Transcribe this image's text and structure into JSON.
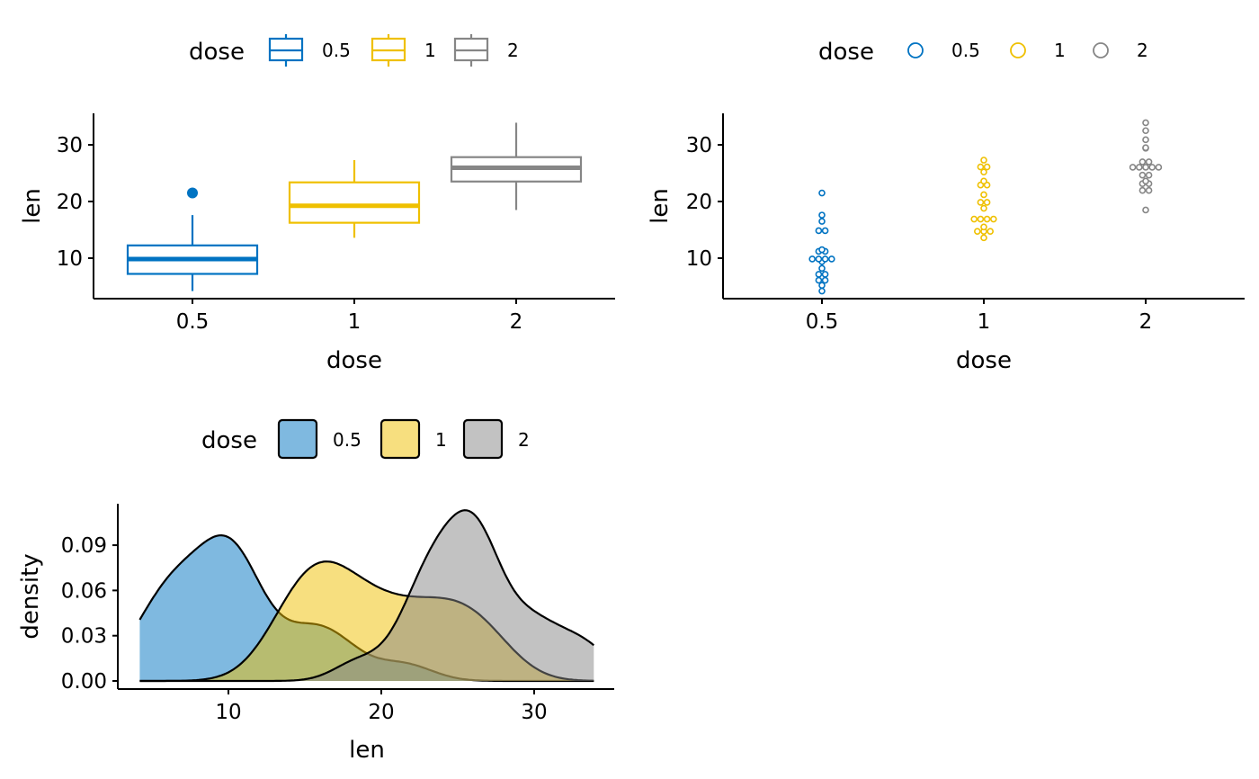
{
  "colors": {
    "0.5": "#0073C2",
    "1": "#EFC000",
    "2": "#868686"
  },
  "chart_data": [
    {
      "type": "box",
      "xlabel": "dose",
      "ylabel": "len",
      "categories": [
        "0.5",
        "1",
        "2"
      ],
      "yticks": [
        10,
        20,
        30
      ],
      "ylim": [
        2.7,
        35.4
      ],
      "legend": {
        "title": "dose",
        "labels": [
          "0.5",
          "1",
          "2"
        ],
        "placement": "top"
      },
      "boxes": [
        {
          "min": 4.2,
          "q1": 7.225,
          "median": 9.85,
          "q3": 12.25,
          "max": 17.6,
          "outliers": [
            21.5
          ]
        },
        {
          "min": 13.6,
          "q1": 16.25,
          "median": 19.25,
          "q3": 23.375,
          "max": 27.3,
          "outliers": []
        },
        {
          "min": 18.5,
          "q1": 23.525,
          "median": 25.95,
          "q3": 27.825,
          "max": 33.9,
          "outliers": []
        }
      ]
    },
    {
      "type": "scatter",
      "subtype": "dotplot",
      "xlabel": "dose",
      "ylabel": "len",
      "categories": [
        "0.5",
        "1",
        "2"
      ],
      "yticks": [
        10,
        20,
        30
      ],
      "ylim": [
        2.7,
        35.4
      ],
      "legend": {
        "title": "dose",
        "labels": [
          "0.5",
          "1",
          "2"
        ],
        "placement": "top"
      }
    },
    {
      "type": "area",
      "subtype": "density",
      "xlabel": "len",
      "ylabel": "density",
      "xticks": [
        10,
        20,
        30
      ],
      "yticks": [
        "0.00",
        "0.03",
        "0.06",
        "0.09"
      ],
      "xlim": [
        2.7,
        35.4
      ],
      "ylim": [
        0,
        0.115
      ],
      "legend": {
        "title": "dose",
        "labels": [
          "0.5",
          "1",
          "2"
        ],
        "placement": "top"
      }
    }
  ],
  "groups": {
    "0.5": [
      4.2,
      11.5,
      7.3,
      5.8,
      6.4,
      10,
      11.2,
      11.2,
      5.2,
      7,
      15.2,
      21.5,
      17.6,
      9.7,
      14.5,
      10,
      8.2,
      9.4,
      16.5,
      9.7
    ],
    "1": [
      16.5,
      16.5,
      15.2,
      17.3,
      22.5,
      17.3,
      13.6,
      14.5,
      18.8,
      15.5,
      19.7,
      23.3,
      23.6,
      26.4,
      20,
      25.2,
      25.8,
      21.2,
      14.5,
      27.3
    ],
    "2": [
      23.6,
      18.5,
      33.9,
      25.5,
      26.4,
      32.5,
      26.7,
      21.5,
      23.3,
      29.5,
      25.5,
      26.4,
      22.4,
      24.5,
      24.8,
      30.9,
      26.4,
      27.3,
      29.4,
      23
    ]
  }
}
